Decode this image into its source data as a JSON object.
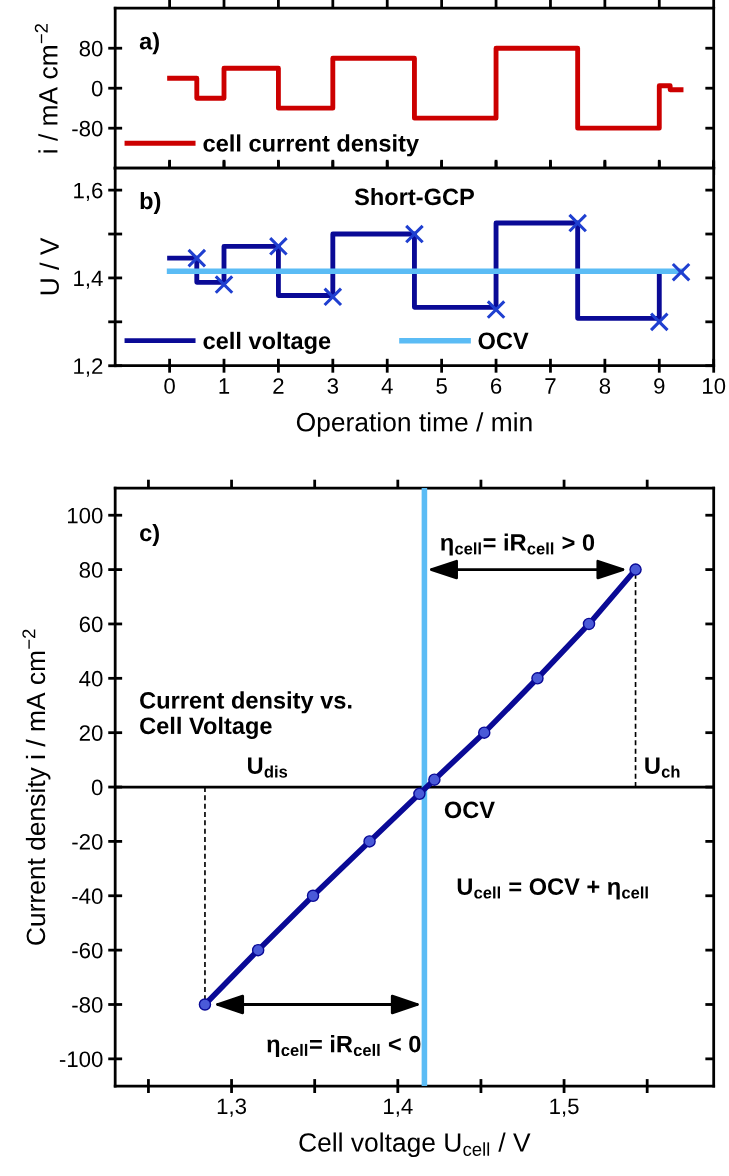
{
  "chart_data": [
    {
      "type": "step",
      "ylabel": "i / mA cm$^{−2}$",
      "xlim": [
        -1,
        10
      ],
      "xticks": [
        0,
        1,
        2,
        3,
        4,
        5,
        6,
        7,
        8,
        9,
        10
      ],
      "ylim": [
        -160,
        160
      ],
      "yticks": [
        -80,
        0,
        80
      ],
      "tick_labels": "y",
      "grid": false,
      "legend": "bottom left",
      "annotations": [
        "a)"
      ],
      "series": [
        {
          "name": "cell current density",
          "color": "#cc0000",
          "x": [
            0,
            0.5,
            1,
            2,
            3,
            4.5,
            6,
            7.5,
            9,
            9.2,
            9.4
          ],
          "values": [
            20,
            -20,
            40,
            -40,
            60,
            -60,
            80,
            -80,
            5,
            -3,
            -3
          ]
        }
      ]
    },
    {
      "type": "step",
      "ylabel": "U / V",
      "xlabel": "Operation time / min",
      "title": "Short-GCP",
      "xlim": [
        -1,
        10
      ],
      "xticks": [
        0,
        1,
        2,
        3,
        4,
        5,
        6,
        7,
        8,
        9,
        10
      ],
      "ylim": [
        1.2,
        1.65
      ],
      "yticks": [
        {
          "value": 1.2,
          "label": "1,2"
        },
        {
          "value": 1.3,
          "label": null
        },
        {
          "value": 1.4,
          "label": "1,4"
        },
        {
          "value": 1.5,
          "label": null
        },
        {
          "value": 1.6,
          "label": "1,6"
        }
      ],
      "grid": false,
      "legend": "bottom left",
      "annotations": [
        "b)"
      ],
      "series": [
        {
          "name": "cell voltage",
          "color": "#0a0a96",
          "x": [
            0,
            0.5,
            1,
            2,
            3,
            4.5,
            6,
            7.5,
            9,
            9.4
          ],
          "values": [
            1.445,
            1.39,
            1.472,
            1.36,
            1.5,
            1.333,
            1.525,
            1.308,
            1.415,
            1.415
          ]
        },
        {
          "type": "scatter",
          "marker": "cross",
          "color": "#1f3fd0",
          "x": [
            0.5,
            1,
            2,
            3,
            4.5,
            6,
            7.5,
            9,
            9.4
          ],
          "values": [
            1.445,
            1.385,
            1.472,
            1.357,
            1.5,
            1.328,
            1.525,
            1.3,
            1.413
          ]
        },
        {
          "type": "line",
          "name": "OCV",
          "color": "#5bbcf5",
          "x": [
            0,
            9.4
          ],
          "values": [
            1.415,
            1.415
          ]
        }
      ]
    },
    {
      "type": "line",
      "xlabel": "Cell voltage U$_{cell}$ / V",
      "ylabel": "Current density i / mA cm$^{−2}$",
      "xlim": [
        1.23,
        1.59
      ],
      "xticks": [
        {
          "value": 1.25,
          "label": null
        },
        {
          "value": 1.3,
          "label": "1,3"
        },
        {
          "value": 1.35,
          "label": null
        },
        {
          "value": 1.4,
          "label": "1,4"
        },
        {
          "value": 1.45,
          "label": null
        },
        {
          "value": 1.5,
          "label": "1,5"
        },
        {
          "value": 1.55,
          "label": null
        }
      ],
      "ylim": [
        -110,
        110
      ],
      "yticks": [
        -100,
        -80,
        -60,
        -40,
        -20,
        0,
        20,
        40,
        60,
        80,
        100
      ],
      "grid": false,
      "legend": false,
      "ref_lines": [
        {
          "axis": "y",
          "value": 0,
          "color": "#000000"
        },
        {
          "axis": "x",
          "value": 1.416,
          "color": "#5bbcf5"
        }
      ],
      "annotations": [
        "c)",
        "Current density vs.\nCell Voltage",
        {
          "text": "η$_{cell}$= iR$_{cell}$ > 0",
          "x": 1.543,
          "y": 80
        },
        {
          "text": "η$_{cell}$= iR$_{cell}$ < 0",
          "x": 1.284,
          "y": -80
        },
        {
          "text": "U$_{ch}$",
          "x": 1.543,
          "y": 0
        },
        {
          "text": "U$_{dis}$",
          "x": 1.284,
          "y": 0
        },
        {
          "text": "OCV",
          "x": 1.416,
          "y": 0
        },
        "U$_{cell}$ = OCV + η$_{cell}$"
      ],
      "series": [
        {
          "color": "#000000",
          "line_style": "dashed",
          "x": [
            1.543,
            1.543
          ],
          "values": [
            0,
            80
          ]
        },
        {
          "color": "#000000",
          "line_style": "dashed",
          "x": [
            1.284,
            1.284
          ],
          "values": [
            0,
            -80
          ]
        },
        {
          "color": "#0a0a96",
          "marker": "circle",
          "x": [
            1.284,
            1.316,
            1.349,
            1.383,
            1.413,
            1.422,
            1.452,
            1.484,
            1.515,
            1.543
          ],
          "values": [
            -80,
            -60,
            -40,
            -20,
            -2.5,
            2.7,
            20,
            40,
            60,
            80
          ]
        }
      ]
    }
  ]
}
